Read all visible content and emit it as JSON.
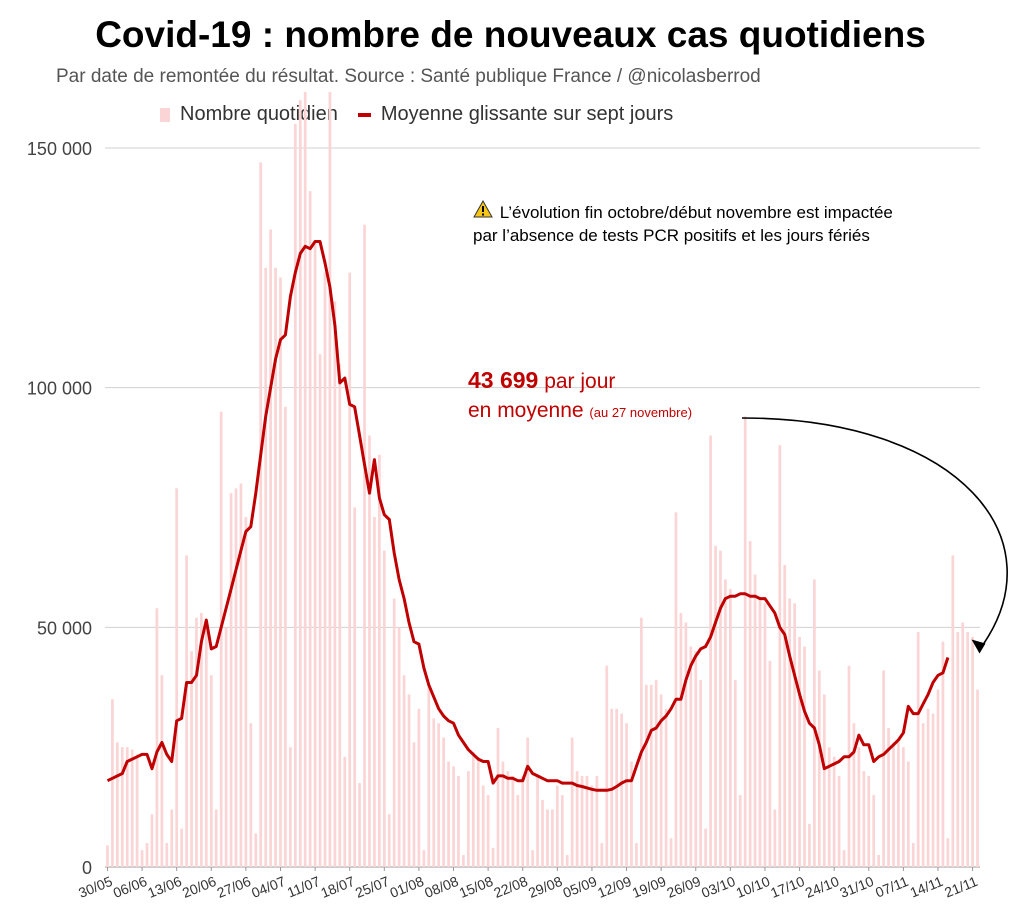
{
  "chart_data": {
    "type": "bar+line",
    "title": "Covid-19 : nombre de nouveaux cas quotidiens",
    "subtitle": "Par date de remontée du résultat. Source : Santé publique France / @nicolasberrod",
    "legend": {
      "bars": "Nombre quotidien",
      "line": "Moyenne glissante sur sept jours",
      "position": "top"
    },
    "colors": {
      "bars": "#fbd5d5",
      "line": "#c00000",
      "grid": "#d0d0d0"
    },
    "y_axis": {
      "min": 0,
      "max": 150000,
      "ticks": [
        0,
        50000,
        100000,
        150000
      ],
      "tick_labels": [
        "0",
        "50 000",
        "100 000",
        "150 000"
      ]
    },
    "x_axis": {
      "start_date": "30/05",
      "tick_labels": [
        "30/05",
        "06/06",
        "13/06",
        "20/06",
        "27/06",
        "04/07",
        "11/07",
        "18/07",
        "25/07",
        "01/08",
        "08/08",
        "15/08",
        "22/08",
        "29/08",
        "05/09",
        "12/09",
        "19/09",
        "26/09",
        "03/10",
        "10/10",
        "17/10",
        "24/10",
        "31/10",
        "07/11",
        "14/11",
        "21/11"
      ]
    },
    "series": [
      {
        "name": "Nombre quotidien",
        "type": "bar",
        "values": [
          4500,
          35000,
          26000,
          25000,
          25000,
          24500,
          23500,
          3500,
          5000,
          11000,
          54000,
          40000,
          5000,
          12000,
          79000,
          8000,
          65000,
          45000,
          52000,
          53000,
          50000,
          40000,
          12000,
          95000,
          50000,
          78000,
          79000,
          80000,
          73000,
          30000,
          7000,
          147000,
          125000,
          133000,
          125000,
          123000,
          96000,
          25000,
          155000,
          160000,
          162000,
          141000,
          130000,
          107000,
          124000,
          163000,
          118000,
          105000,
          23000,
          124000,
          75000,
          17500,
          134000,
          90000,
          73000,
          86000,
          66000,
          11000,
          56000,
          50000,
          40000,
          36000,
          26000,
          33000,
          3500,
          38000,
          31000,
          30000,
          27000,
          22000,
          21000,
          19000,
          2500,
          20000,
          24000,
          23000,
          17000,
          15000,
          4000,
          29000,
          22000,
          20000,
          19000,
          15000,
          19000,
          27000,
          3500,
          19000,
          14000,
          12000,
          12000,
          17000,
          15000,
          2500,
          27000,
          20000,
          19000,
          19000,
          17000,
          19000,
          5000,
          42000,
          33000,
          33000,
          32000,
          30000,
          22000,
          5000,
          52000,
          38000,
          38000,
          39000,
          36000,
          33000,
          6000,
          74000,
          53000,
          51000,
          46000,
          45000,
          39000,
          8000,
          90000,
          67000,
          66000,
          60000,
          58000,
          39000,
          15000,
          94000,
          68000,
          61000,
          56000,
          55000,
          43000,
          12000,
          88000,
          63000,
          56000,
          55000,
          48000,
          46000,
          9000,
          60000,
          41000,
          36000,
          25000,
          23000,
          19000,
          3500,
          42000,
          30000,
          25000,
          20000,
          19000,
          15000,
          2500,
          41000,
          29000,
          26000,
          26000,
          25000,
          22000,
          5000,
          49000,
          30000,
          33000,
          32000,
          37000,
          47000,
          6000,
          65000,
          49000,
          51000,
          49000,
          48000,
          37000
        ]
      },
      {
        "name": "Moyenne glissante sur sept jours",
        "type": "line",
        "values": [
          18000,
          18500,
          19000,
          19500,
          22000,
          22500,
          23000,
          23500,
          23500,
          20500,
          24000,
          26000,
          23500,
          22000,
          30500,
          31000,
          38500,
          38500,
          40000,
          47000,
          51500,
          45500,
          46000,
          50000,
          54000,
          58000,
          62000,
          66000,
          70000,
          71000,
          78000,
          86000,
          94000,
          100000,
          106000,
          110000,
          111000,
          119000,
          124000,
          128000,
          129500,
          129000,
          130500,
          130500,
          126000,
          121000,
          113000,
          101000,
          102000,
          96500,
          96000,
          90000,
          84000,
          78000,
          85000,
          77000,
          73500,
          72500,
          65500,
          60000,
          56000,
          51000,
          47000,
          46500,
          41500,
          38000,
          35500,
          33000,
          31500,
          30500,
          30000,
          27500,
          26000,
          24500,
          23500,
          22500,
          22000,
          22000,
          17500,
          19000,
          19000,
          18500,
          18500,
          18000,
          18000,
          21000,
          19500,
          19000,
          18500,
          18000,
          18000,
          18000,
          17500,
          17500,
          17500,
          17000,
          16800,
          16500,
          16200,
          16000,
          16000,
          16000,
          16200,
          16800,
          17500,
          18000,
          18000,
          21000,
          24000,
          26000,
          28500,
          29000,
          30500,
          31500,
          33000,
          35000,
          35000,
          39000,
          42000,
          44000,
          45500,
          46000,
          48000,
          51000,
          54000,
          56000,
          56500,
          56500,
          57000,
          57000,
          56500,
          56500,
          56000,
          56000,
          54500,
          53000,
          50000,
          48500,
          44000,
          40000,
          36000,
          32500,
          30000,
          29000,
          25500,
          20500,
          21000,
          21500,
          22000,
          23000,
          23000,
          24000,
          27500,
          25500,
          25500,
          22000,
          23000,
          23500,
          24500,
          25500,
          26500,
          28000,
          33500,
          32000,
          32000,
          34000,
          36000,
          38500,
          40000,
          40500,
          43699
        ]
      }
    ],
    "annotations": {
      "note_icon": "warning-icon",
      "note_line1": "L’évolution fin octobre/début novembre est impactée",
      "note_line2": "par l’absence de tests PCR positifs et les jours fériés",
      "callout_value": "43 699",
      "callout_text1": " par jour",
      "callout_text2": "en moyenne ",
      "callout_date": "(au 27 novembre)"
    }
  }
}
